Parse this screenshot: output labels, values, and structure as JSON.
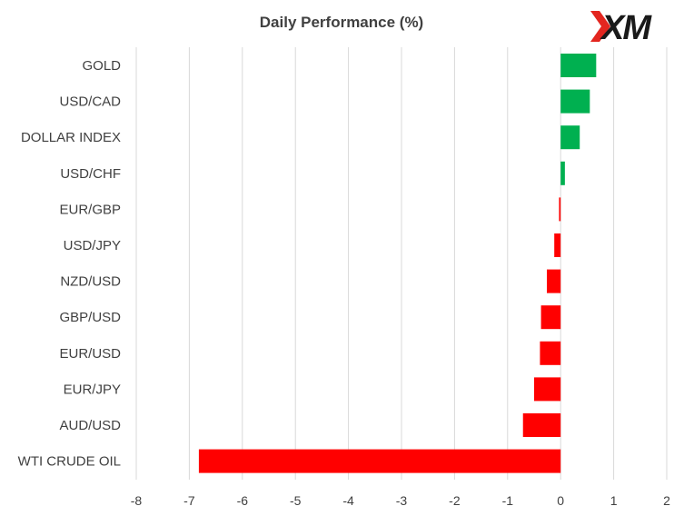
{
  "logo": {
    "text": "XM",
    "colors": {
      "mark": "#e3261f",
      "text": "#1a1a1a"
    }
  },
  "colors": {
    "positive": "#00b050",
    "negative": "#ff0000",
    "grid": "#d9d9d9",
    "text": "#404040"
  },
  "chart_data": {
    "type": "bar",
    "orientation": "horizontal",
    "title": "Daily Performance (%)",
    "xlabel": "",
    "ylabel": "",
    "categories": [
      "GOLD",
      "USD/CAD",
      "DOLLAR INDEX",
      "USD/CHF",
      "EUR/GBP",
      "USD/JPY",
      "NZD/USD",
      "GBP/USD",
      "EUR/USD",
      "EUR/JPY",
      "AUD/USD",
      "WTI CRUDE OIL"
    ],
    "values": [
      0.67,
      0.55,
      0.36,
      0.08,
      -0.03,
      -0.12,
      -0.26,
      -0.37,
      -0.39,
      -0.5,
      -0.71,
      -6.82
    ],
    "xlim": [
      -8,
      2
    ],
    "xticks": [
      -8,
      -7,
      -6,
      -5,
      -4,
      -3,
      -2,
      -1,
      0,
      1,
      2
    ],
    "grid": "vertical",
    "legend": "none"
  }
}
